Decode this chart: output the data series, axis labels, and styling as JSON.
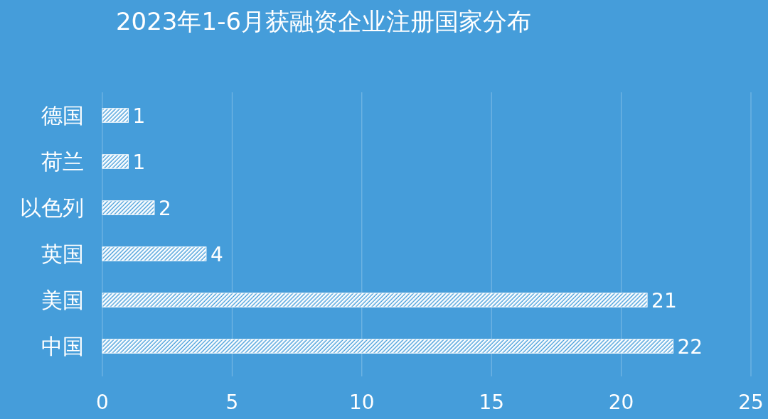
{
  "chart_data": {
    "type": "bar",
    "orientation": "horizontal",
    "title": "2023年1-6月获融资企业注册国家分布",
    "categories": [
      "德国",
      "荷兰",
      "以色列",
      "英国",
      "美国",
      "中国"
    ],
    "values": [
      1,
      1,
      2,
      4,
      21,
      22
    ],
    "color": "#ffffff",
    "xlim": [
      0,
      25
    ],
    "xticks": [
      0,
      5,
      10,
      15,
      20,
      25
    ],
    "grid": "x",
    "data_labels": true
  }
}
